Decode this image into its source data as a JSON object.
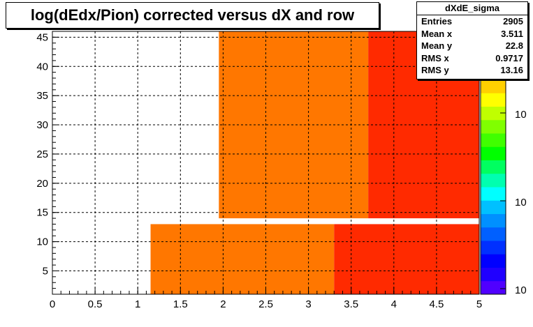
{
  "chart_data": {
    "type": "heatmap",
    "title": "log(dEdx/Pion) corrected versus dX and row",
    "xlabel": "",
    "ylabel": "",
    "xlim": [
      0,
      5
    ],
    "ylim": [
      1,
      46
    ],
    "x_ticks": [
      "0",
      "0.5",
      "1",
      "1.5",
      "2",
      "2.5",
      "3",
      "3.5",
      "4",
      "4.5",
      "5"
    ],
    "y_ticks": [
      "5",
      "10",
      "15",
      "20",
      "25",
      "30",
      "35",
      "40",
      "45"
    ],
    "grid": true,
    "palette_colors": [
      "#5000ff",
      "#2000ff",
      "#0000ff",
      "#0030ff",
      "#0060ff",
      "#0090ff",
      "#00c0ff",
      "#00ffff",
      "#00ffb0",
      "#00ff60",
      "#00ff00",
      "#40ff00",
      "#80ff00",
      "#c0ff00",
      "#ffff00",
      "#ffd000"
    ],
    "colorbar_tick_labels": [
      "10",
      "10",
      "10"
    ],
    "regions": [
      {
        "x0": 1.95,
        "x1": 3.7,
        "y0": 14,
        "y1": 46,
        "color": "#ff7700"
      },
      {
        "x0": 3.7,
        "x1": 5.0,
        "y0": 14,
        "y1": 46,
        "color": "#ff2a00"
      },
      {
        "x0": 1.15,
        "x1": 3.3,
        "y0": 1,
        "y1": 13,
        "color": "#ff7700"
      },
      {
        "x0": 3.3,
        "x1": 5.0,
        "y0": 1,
        "y1": 13,
        "color": "#ff2a00"
      }
    ]
  },
  "stats": {
    "name": "dXdE_sigma",
    "rows": [
      {
        "label": "Entries",
        "value": "2905"
      },
      {
        "label": "Mean x",
        "value": "3.511"
      },
      {
        "label": "Mean y",
        "value": "22.8"
      },
      {
        "label": "RMS x",
        "value": "0.9717"
      },
      {
        "label": "RMS y",
        "value": "13.16"
      }
    ]
  }
}
